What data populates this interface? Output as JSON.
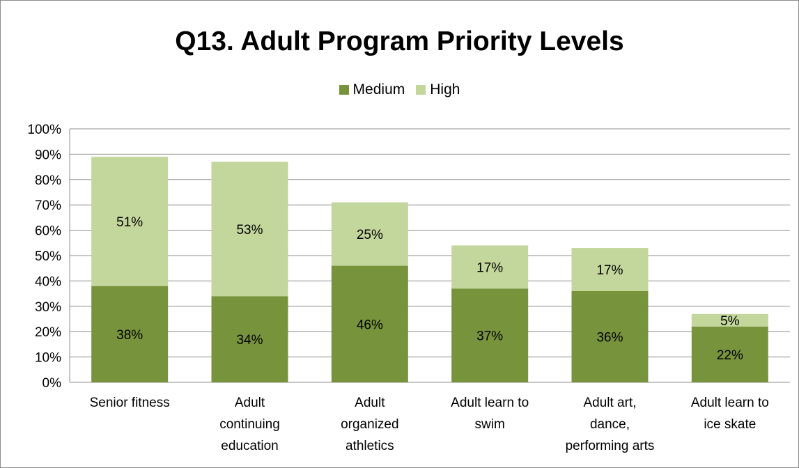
{
  "chart_data": {
    "type": "bar",
    "stacked": true,
    "title": "Q13. Adult Program Priority Levels",
    "categories": [
      [
        "Senior fitness"
      ],
      [
        "Adult",
        "continuing",
        "education"
      ],
      [
        "Adult",
        "organized",
        "athletics"
      ],
      [
        "Adult learn to",
        "swim"
      ],
      [
        "Adult art,",
        "dance,",
        "performing arts"
      ],
      [
        "Adult learn to",
        "ice skate"
      ]
    ],
    "series": [
      {
        "name": "Medium",
        "color": "#77933c",
        "values": [
          38,
          34,
          46,
          37,
          36,
          22
        ],
        "labels": [
          "38%",
          "34%",
          "46%",
          "37%",
          "36%",
          "22%"
        ]
      },
      {
        "name": "High",
        "color": "#c3d69b",
        "values": [
          51,
          53,
          25,
          17,
          17,
          5
        ],
        "labels": [
          "51%",
          "53%",
          "25%",
          "17%",
          "17%",
          "5%"
        ]
      }
    ],
    "ylim": [
      0,
      100
    ],
    "yticks": [
      "0%",
      "10%",
      "20%",
      "30%",
      "40%",
      "50%",
      "60%",
      "70%",
      "80%",
      "90%",
      "100%"
    ],
    "grid": true,
    "legend_position": "top"
  }
}
